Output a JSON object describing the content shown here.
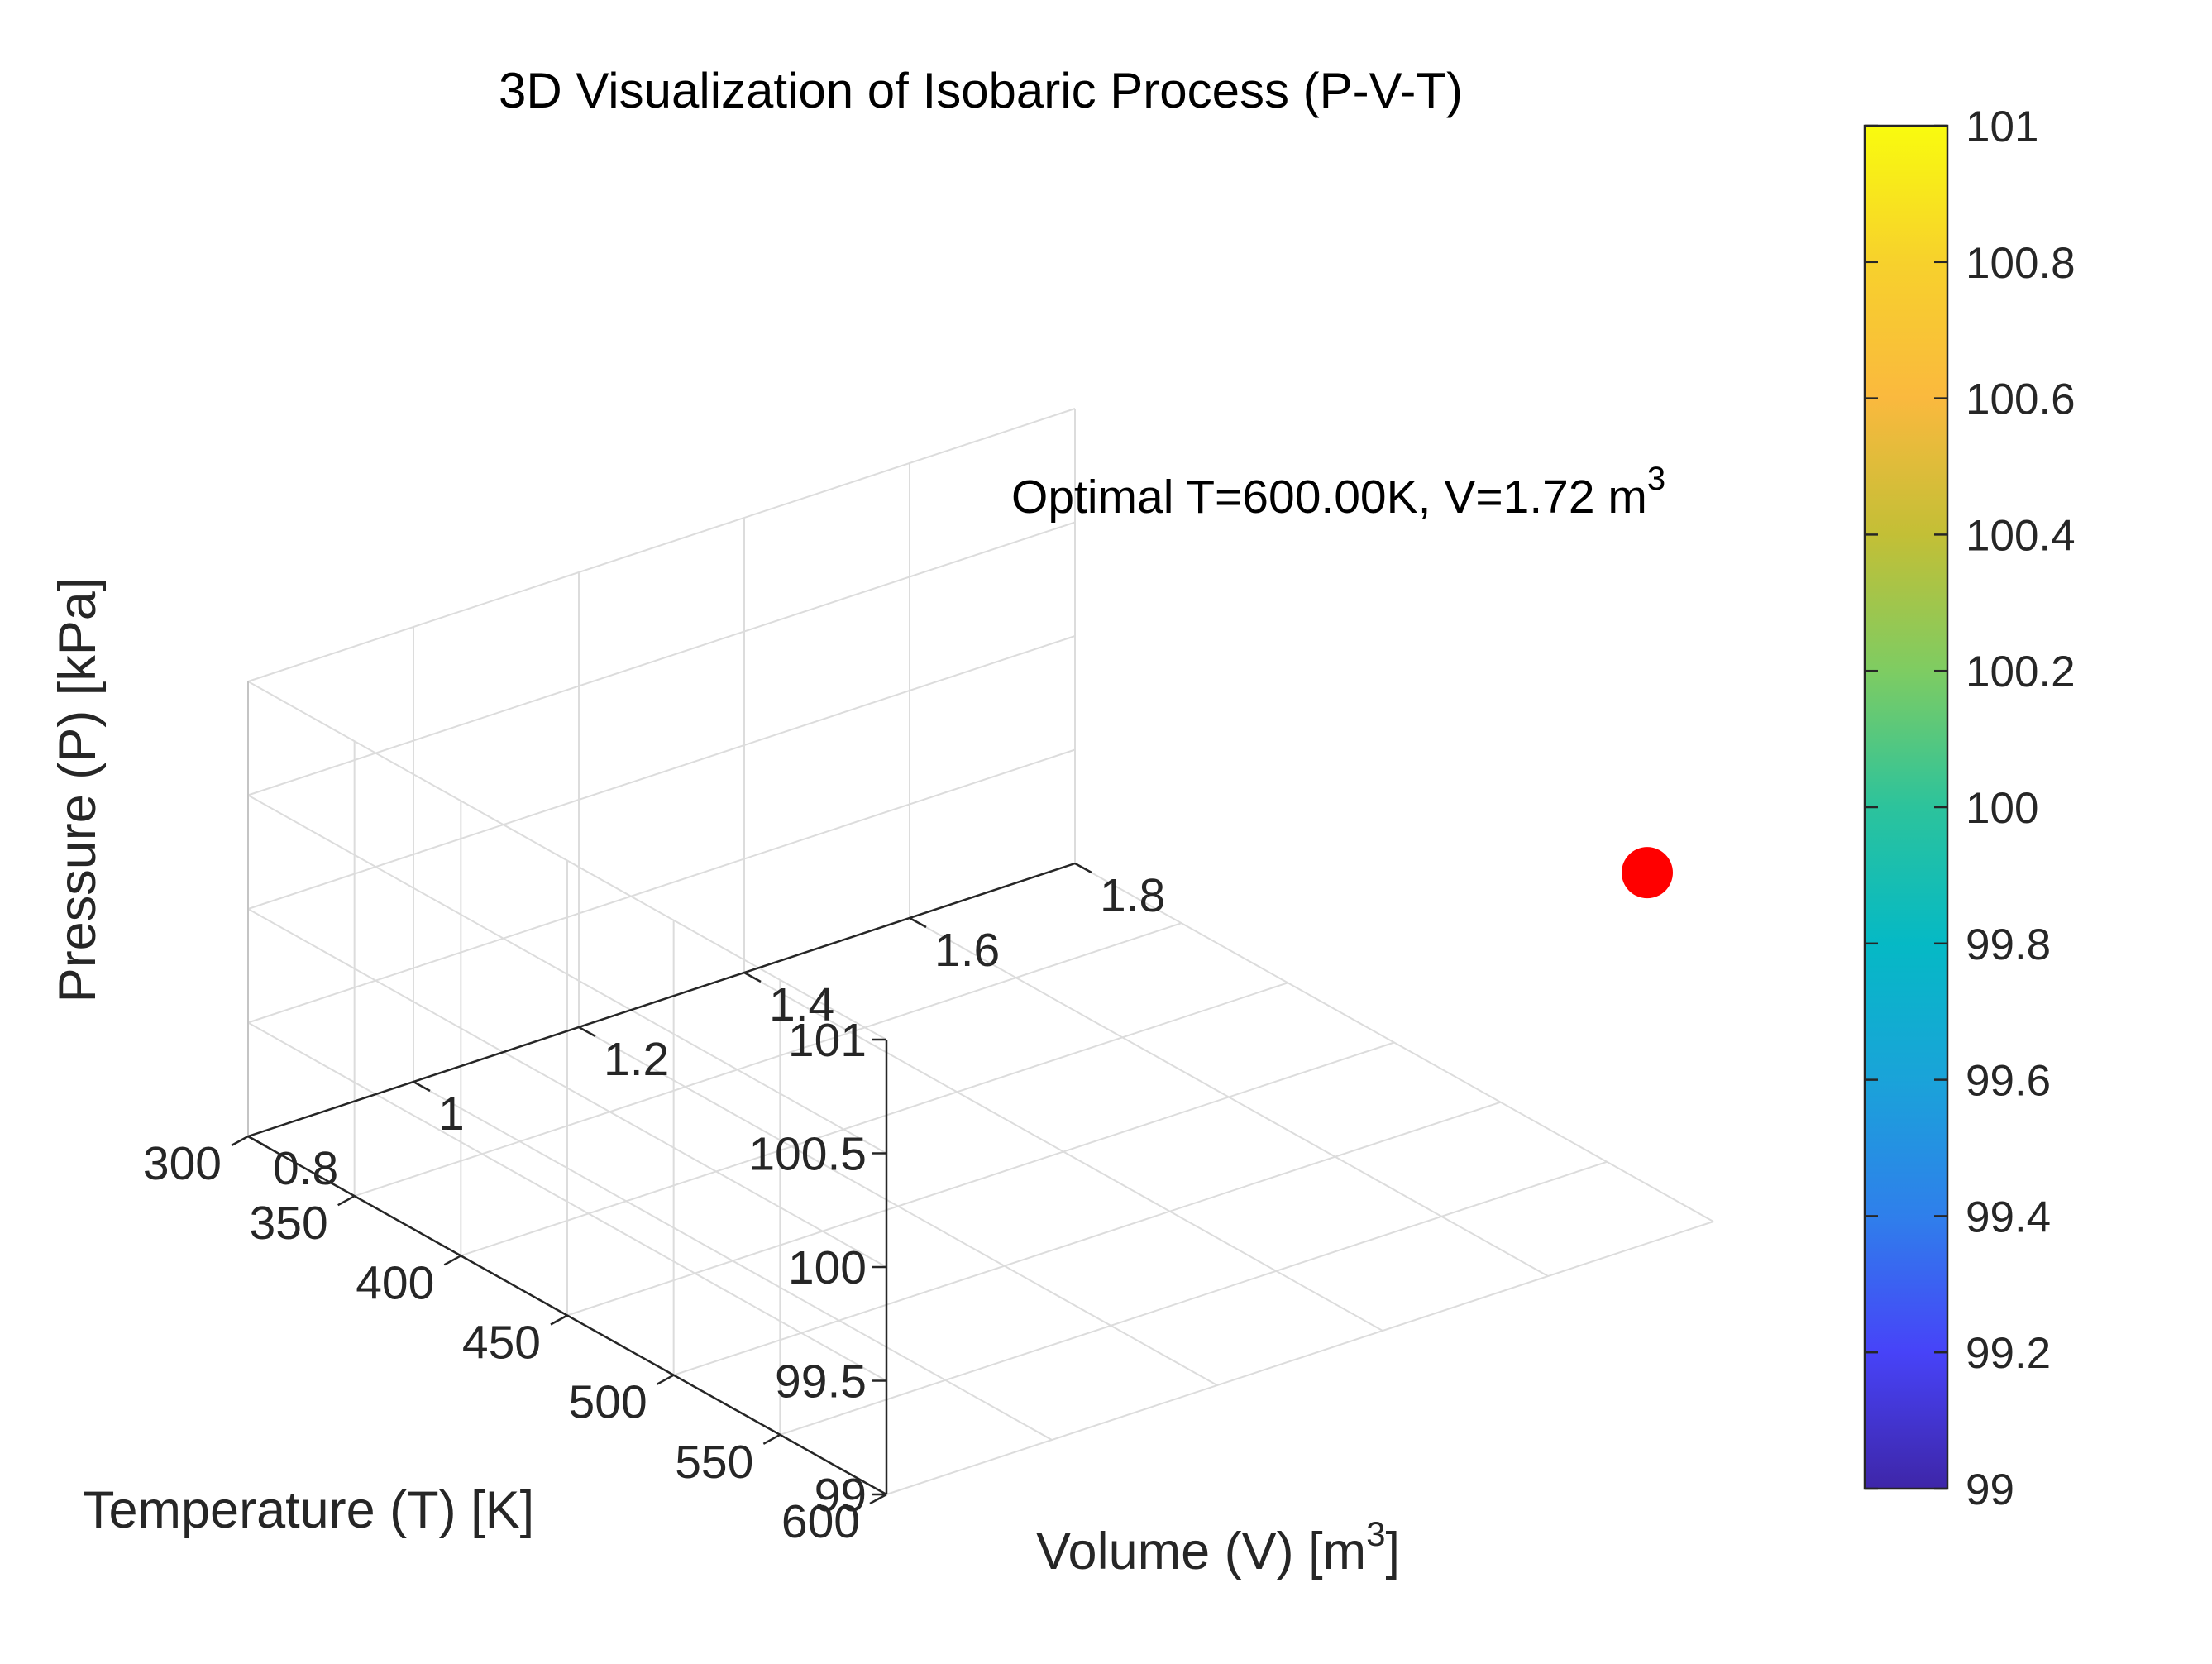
{
  "chart_data": {
    "type": "scatter",
    "projection": "3d",
    "title": "3D Visualization of Isobaric Process (P-V-T)",
    "axes": {
      "x": {
        "label": "Temperature (T) [K]",
        "range": [
          300,
          600
        ],
        "ticks": [
          300,
          350,
          400,
          450,
          500,
          550,
          600
        ],
        "tick_labels": [
          "300",
          "350",
          "400",
          "450",
          "500",
          "550",
          "600"
        ]
      },
      "y": {
        "label_main": "Volume (V) [m",
        "label_sup": "3",
        "label_end": "]",
        "range": [
          0.8,
          1.8
        ],
        "ticks": [
          0.8,
          1.0,
          1.2,
          1.4,
          1.6,
          1.8
        ],
        "tick_labels": [
          "0.8",
          "1",
          "1.2",
          "1.4",
          "1.6",
          "1.8"
        ]
      },
      "z": {
        "label": "Pressure (P) [kPa]",
        "range": [
          99,
          101
        ],
        "ticks": [
          99,
          99.5,
          100,
          100.5,
          101
        ],
        "tick_labels": [
          "99",
          "99.5",
          "100",
          "100.5",
          "101"
        ]
      }
    },
    "grid": true,
    "points": [
      {
        "T": 600,
        "V": 1.72,
        "P": 100.63,
        "color": "#ff0000"
      }
    ],
    "annotation": {
      "text_main": "Optimal T=600.00K, V=1.72 m",
      "text_sup": "3"
    },
    "colorbar": {
      "range": [
        99,
        101
      ],
      "ticks": [
        99,
        99.2,
        99.4,
        99.6,
        99.8,
        100,
        100.2,
        100.4,
        100.6,
        100.8,
        101
      ],
      "tick_labels": [
        "99",
        "99.2",
        "99.4",
        "99.6",
        "99.8",
        "100",
        "100.2",
        "100.4",
        "100.6",
        "100.8",
        "101"
      ],
      "colormap": "parula",
      "colormap_stops": [
        "#3e26a8",
        "#4743f8",
        "#2f7feb",
        "#1aa3d9",
        "#05b9c5",
        "#2cc39c",
        "#7ecc62",
        "#c3bf36",
        "#fab93e",
        "#f7d12c",
        "#f9fb0e"
      ]
    }
  }
}
